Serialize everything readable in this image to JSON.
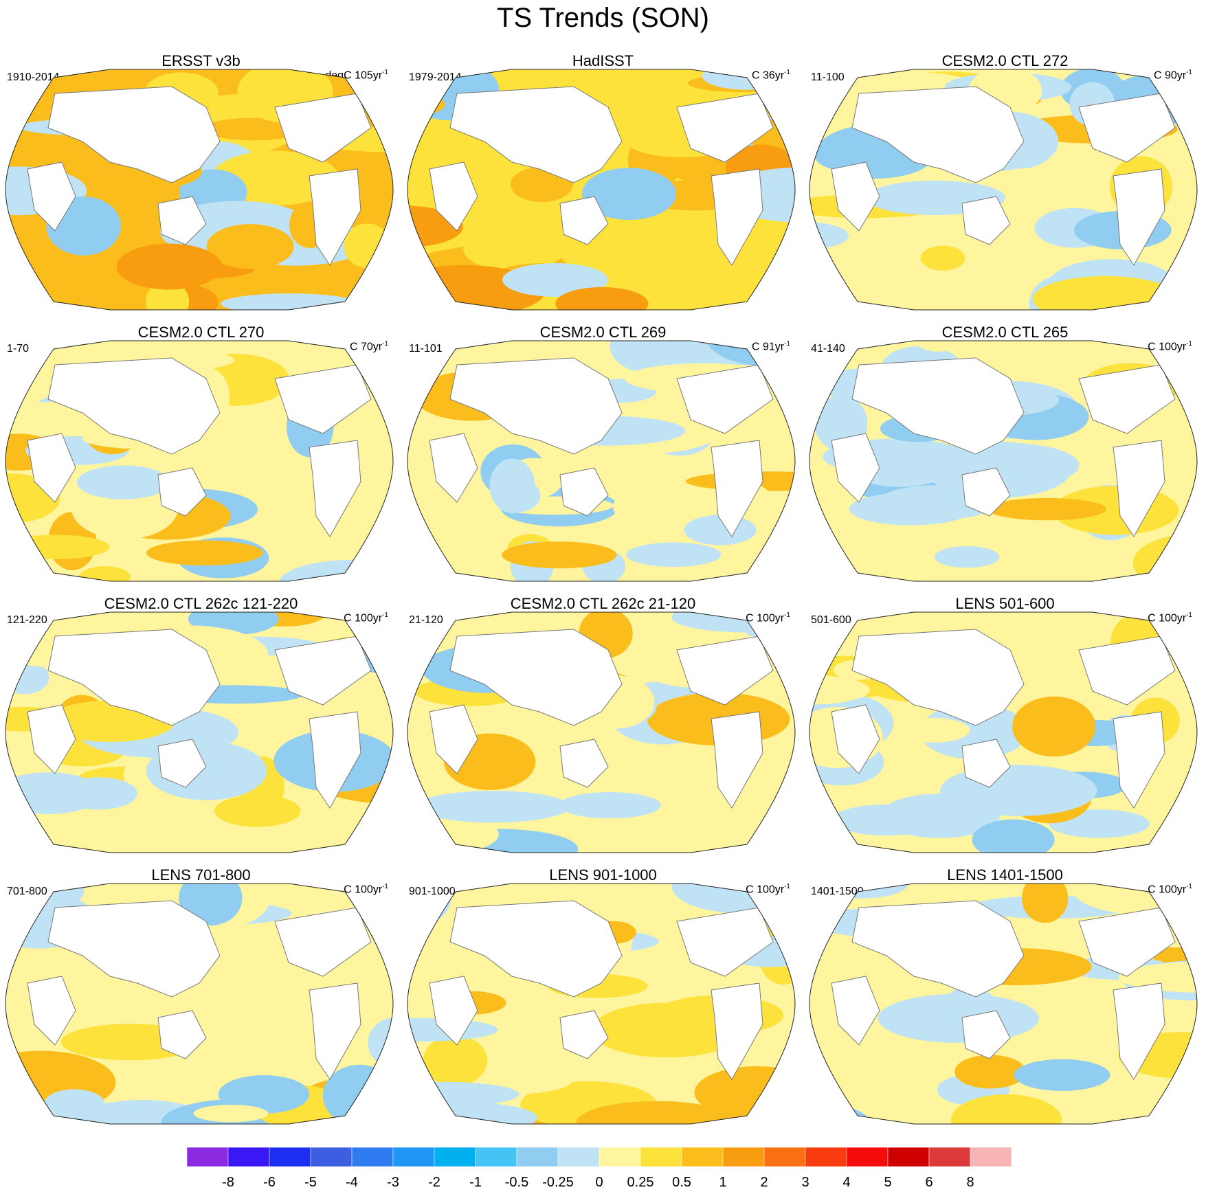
{
  "title": "TS Trends (SON)",
  "panels": [
    {
      "title": "ERSST v3b",
      "period": "1910-2014",
      "units_prefix": "degC 105yr",
      "units_exp": "-1",
      "mean_class": 7
    },
    {
      "title": "HadISST",
      "period": "1979-2014",
      "units_prefix": "C 36yr",
      "units_exp": "-1",
      "mean_class": 6
    },
    {
      "title": "CESM2.0 CTL 272",
      "period": "11-100",
      "units_prefix": "C 90yr",
      "units_exp": "-1",
      "mean_class": 4
    },
    {
      "title": "CESM2.0 CTL 270",
      "period": "1-70",
      "units_prefix": "C 70yr",
      "units_exp": "-1",
      "mean_class": 4
    },
    {
      "title": "CESM2.0 CTL 269",
      "period": "11-101",
      "units_prefix": "C 91yr",
      "units_exp": "-1",
      "mean_class": 5
    },
    {
      "title": "CESM2.0 CTL 265",
      "period": "41-140",
      "units_prefix": "C 100yr",
      "units_exp": "-1",
      "mean_class": 5
    },
    {
      "title": "CESM2.0 CTL 262c 121-220",
      "period": "121-220",
      "units_prefix": "C 100yr",
      "units_exp": "-1",
      "mean_class": 4
    },
    {
      "title": "CESM2.0 CTL 262c 21-120",
      "period": "21-120",
      "units_prefix": "C 100yr",
      "units_exp": "-1",
      "mean_class": 4
    },
    {
      "title": "LENS 501-600",
      "period": "501-600",
      "units_prefix": "C 100yr",
      "units_exp": "-1",
      "mean_class": 5
    },
    {
      "title": "LENS 701-800",
      "period": "701-800",
      "units_prefix": "C 100yr",
      "units_exp": "-1",
      "mean_class": 5
    },
    {
      "title": "LENS 901-1000",
      "period": "901-1000",
      "units_prefix": "C 100yr",
      "units_exp": "-1",
      "mean_class": 5
    },
    {
      "title": "LENS 1401-1500",
      "period": "1401-1500",
      "units_prefix": "C 100yr",
      "units_exp": "-1",
      "mean_class": 4
    }
  ],
  "colorbar": {
    "colors": [
      "#8a2be2",
      "#3a17f5",
      "#1f2ff2",
      "#3d5ee0",
      "#2f7cf0",
      "#1f96f5",
      "#00b0ef",
      "#44c4f5",
      "#90cdf0",
      "#bfe3f5",
      "#fff59e",
      "#fde23c",
      "#fbbd1b",
      "#f89c10",
      "#f87011",
      "#f93b10",
      "#f50c0a",
      "#cf0000",
      "#dc3a3a",
      "#f7b4b4"
    ],
    "labels": [
      "-8",
      "-6",
      "-5",
      "-4",
      "-3",
      "-2",
      "-1",
      "-0.5",
      "-0.25",
      "0",
      "0.25",
      "0.5",
      "1",
      "2",
      "3",
      "4",
      "5",
      "6",
      "8"
    ]
  }
}
